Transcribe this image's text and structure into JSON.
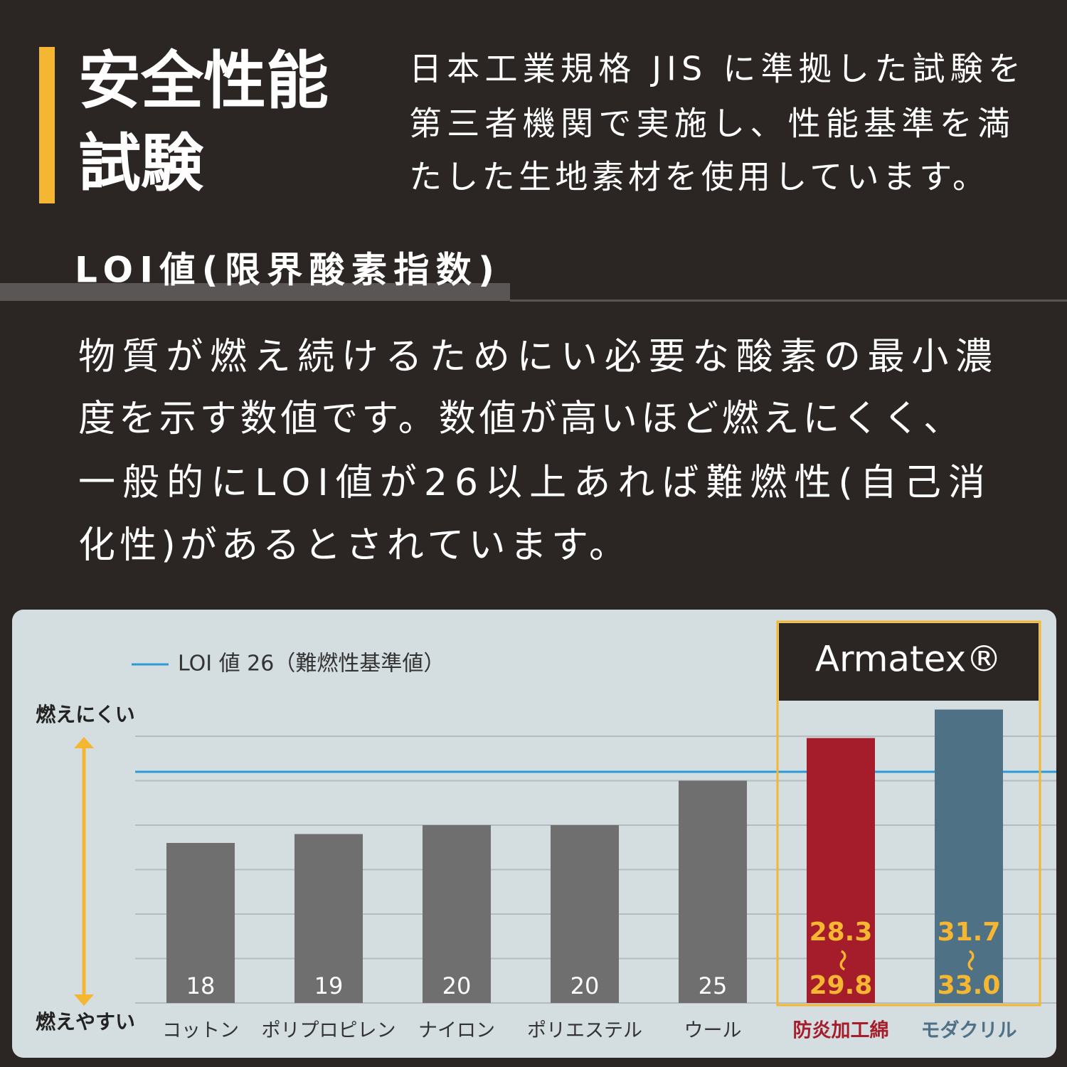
{
  "header": {
    "title_lines": [
      "安全性能",
      "試験"
    ],
    "description_lines": [
      "日本工業規格 JIS に準拠した試験を",
      "第三者機関で実施し、性能基準を満",
      "たした生地素材を使用しています。"
    ]
  },
  "section": {
    "heading": "LOI値(限界酸素指数)",
    "body_lines": [
      "物質が燃え続けるためにい必要な酸素の最小濃",
      "度を示す数値です。数値が高いほど燃えにくく、",
      "一般的にLOI値が26以上あれば難燃性(自己消",
      "化性)があるとされています。"
    ]
  },
  "chart_data": {
    "type": "bar",
    "categories": [
      "コットン",
      "ポリプロピレン",
      "ナイロン",
      "ポリエステル",
      "ウール",
      "防炎加工綿",
      "モダクリル"
    ],
    "values": [
      18,
      19,
      20,
      20,
      25,
      29.8,
      33.0
    ],
    "value_labels": [
      "18",
      "19",
      "20",
      "20",
      "25",
      "29.8",
      "33.0"
    ],
    "low_values": [
      null,
      null,
      null,
      null,
      null,
      28.3,
      31.7
    ],
    "range_separator": "〜",
    "colors": [
      "#6f6f6f",
      "#6f6f6f",
      "#6f6f6f",
      "#6f6f6f",
      "#6f6f6f",
      "#a51d2b",
      "#4e7186"
    ],
    "label_colors": [
      "#333333",
      "#333333",
      "#333333",
      "#333333",
      "#333333",
      "#a51d2b",
      "#4e7186"
    ],
    "ylim": [
      0,
      30
    ],
    "yticks": [
      0,
      5,
      10,
      15,
      20,
      25,
      30
    ],
    "grid": true,
    "reference": {
      "value": 26,
      "label": "LOI 値 26（難燃性基準値）",
      "color": "#2b9ad6"
    },
    "axis_top_label": "燃えにくい",
    "axis_bottom_label": "燃えやすい",
    "highlight_brand": "Armatex®",
    "highlight_from": 5
  }
}
